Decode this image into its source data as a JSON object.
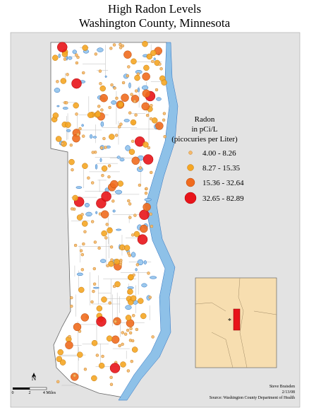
{
  "header": {
    "title_line1": "High Radon Levels",
    "title_line2": "Washington County, Minnesota"
  },
  "legend": {
    "title_line1": "Radon",
    "title_line2": "in pCi/L",
    "title_line3": "(picocuries per Liter)",
    "classes": [
      "4.00 - 8.26",
      "8.27 - 15.35",
      "15.36 - 32.64",
      "32.65 - 82.89"
    ]
  },
  "scale_bar": {
    "labels": [
      "0",
      "2",
      "4 Miles"
    ],
    "north": "N"
  },
  "credits": {
    "author": "Steve Braisden",
    "date": "2/13/08",
    "source": "Source: Washington County Department of Health"
  }
}
